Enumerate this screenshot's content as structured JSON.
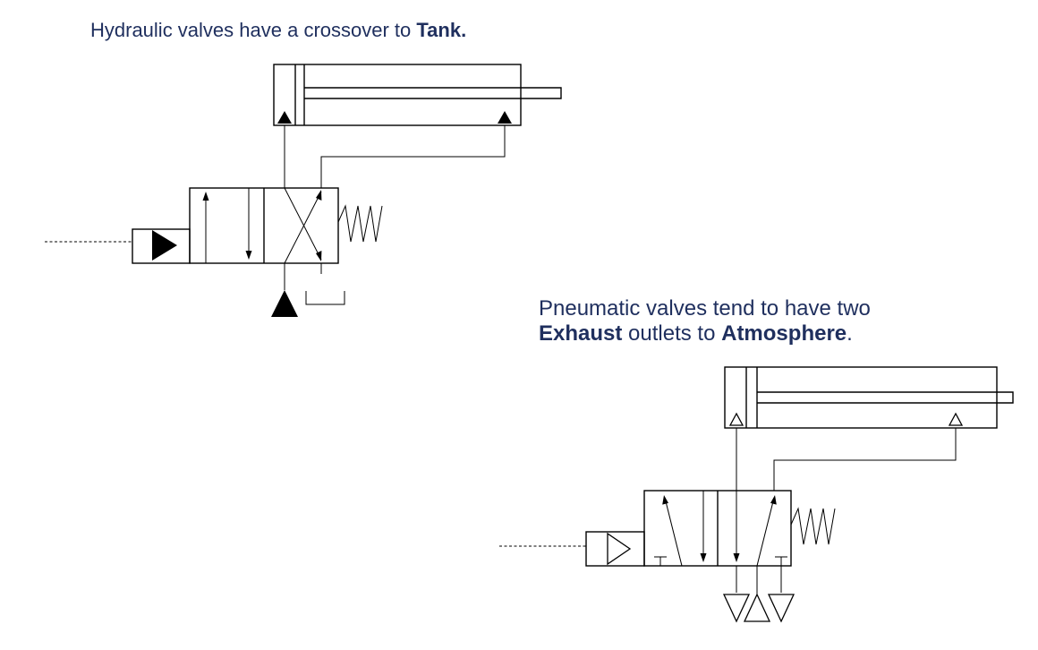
{
  "hydraulic": {
    "caption_text": "Hydraulic valves have a crossover to ",
    "caption_bold": "Tank."
  },
  "pneumatic": {
    "line1": "Pneumatic valves tend to have two",
    "line2_bold1": "Exhaust",
    "line2_mid": " outlets to ",
    "line2_bold2": "Atmosphere",
    "line2_end": "."
  }
}
